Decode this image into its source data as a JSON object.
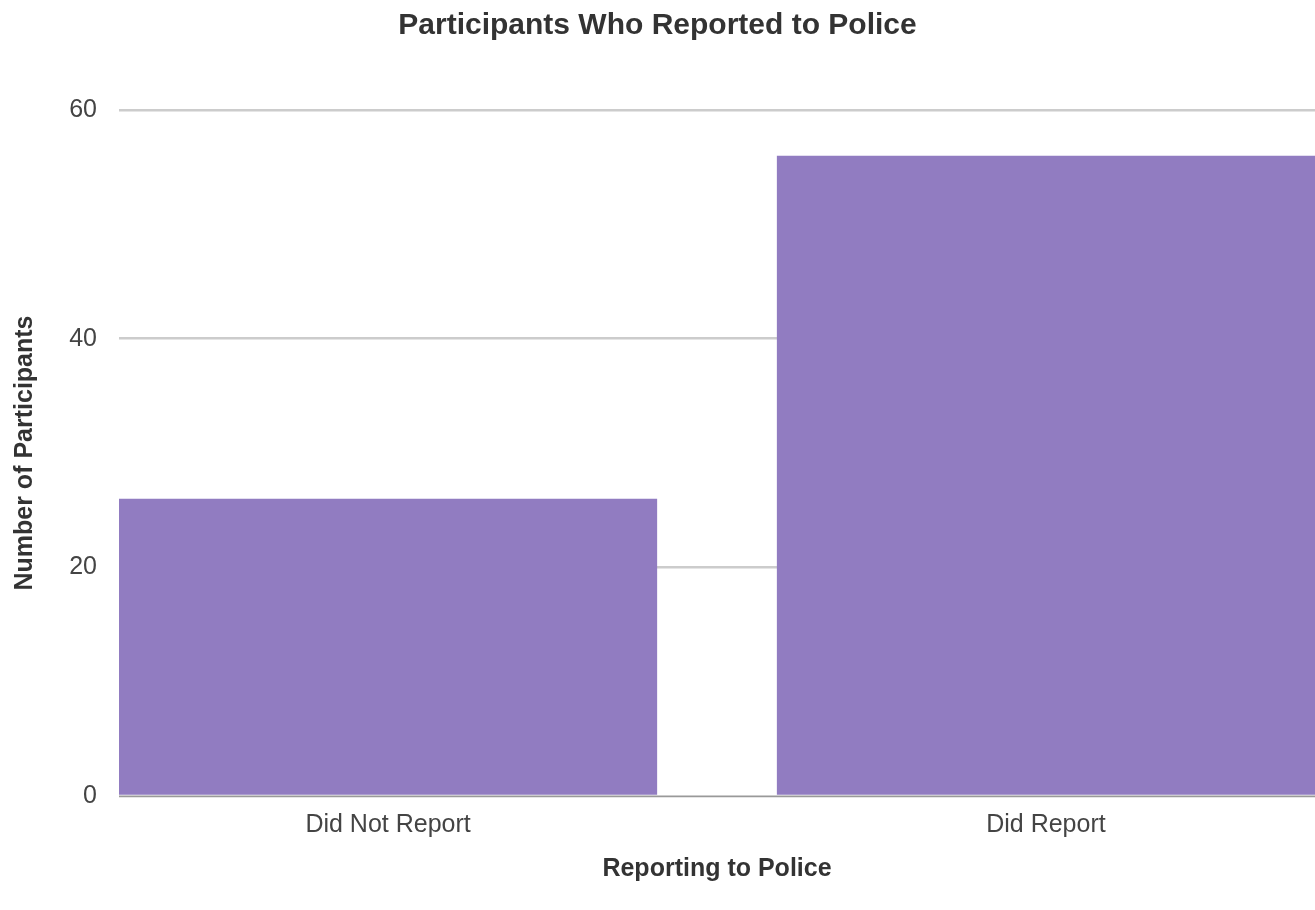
{
  "chart_data": {
    "type": "bar",
    "title": "Participants Who Reported to Police",
    "xlabel": "Reporting to Police",
    "ylabel": "Number of Participants",
    "categories": [
      "Did Not Report",
      "Did Report"
    ],
    "values": [
      26,
      56
    ],
    "color": "#917cc1",
    "ylim": [
      0,
      60
    ],
    "yticks": [
      0,
      20,
      40,
      60
    ],
    "grid": "y"
  }
}
